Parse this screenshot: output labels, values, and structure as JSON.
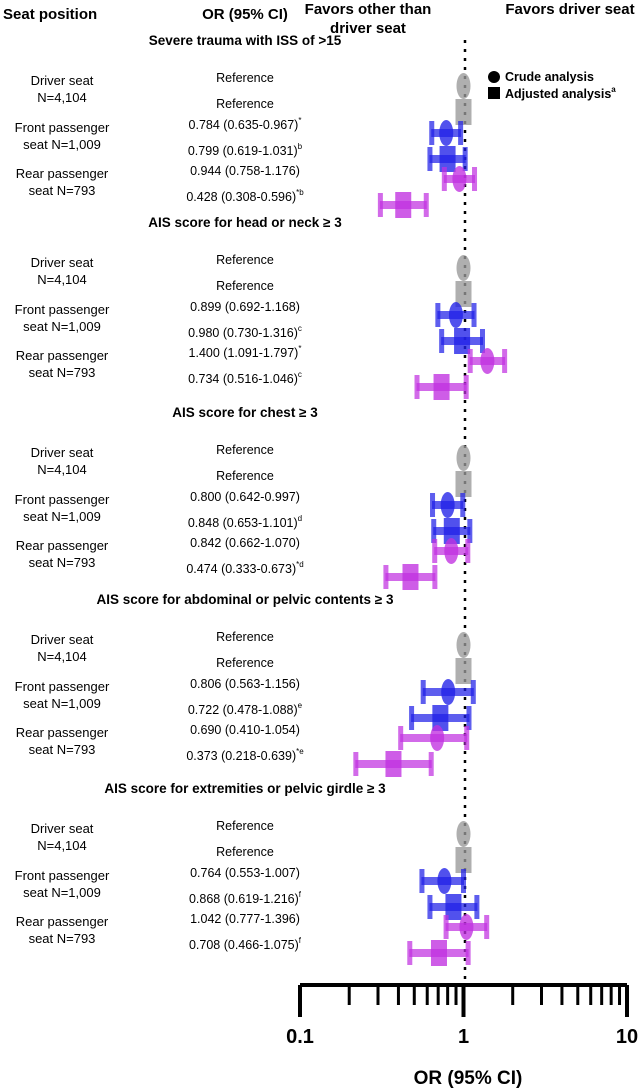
{
  "headers": {
    "seat_position": "Seat position",
    "or_ci": "OR (95% CI)",
    "favors_other_line1": "Favors other than",
    "favors_other_line2": "driver seat",
    "favors_driver": "Favors driver seat"
  },
  "legend": {
    "crude": "Crude analysis",
    "adjusted": "Adjusted analysis",
    "adjusted_sup": "a"
  },
  "colors": {
    "driver": "#999999",
    "front": "#2020e8",
    "rear": "#c030e0"
  },
  "chart_data": {
    "type": "forest",
    "x_scale": "log",
    "xlim": [
      0.1,
      10
    ],
    "x_ticks": [
      0.1,
      1,
      10
    ],
    "x_tick_labels": [
      "0.1",
      "1",
      "10"
    ],
    "xlabel": "OR (95% CI)",
    "reference_line": 1,
    "sections": [
      {
        "title": "Severe trauma with ISS of >15",
        "groups": [
          {
            "label1": "Driver seat",
            "label2": "N=4,104",
            "seat": "driver",
            "rows": [
              {
                "text": "Reference",
                "sup": "",
                "or": 1,
                "lo": 1,
                "hi": 1,
                "marker": "circle"
              },
              {
                "text": "Reference",
                "sup": "",
                "or": 1,
                "lo": 1,
                "hi": 1,
                "marker": "square"
              }
            ]
          },
          {
            "label1": "Front passenger",
            "label2": "seat N=1,009",
            "seat": "front",
            "rows": [
              {
                "text": "0.784 (0.635-0.967)",
                "sup": "*",
                "or": 0.784,
                "lo": 0.635,
                "hi": 0.967,
                "marker": "circle"
              },
              {
                "text": "0.799 (0.619-1.031)",
                "sup": "b",
                "or": 0.799,
                "lo": 0.619,
                "hi": 1.031,
                "marker": "square"
              }
            ]
          },
          {
            "label1": "Rear passenger",
            "label2": "seat N=793",
            "seat": "rear",
            "rows": [
              {
                "text": "0.944 (0.758-1.176)",
                "sup": "",
                "or": 0.944,
                "lo": 0.758,
                "hi": 1.176,
                "marker": "circle"
              },
              {
                "text": "0.428 (0.308-0.596)",
                "sup": "*b",
                "or": 0.428,
                "lo": 0.308,
                "hi": 0.596,
                "marker": "square"
              }
            ]
          }
        ]
      },
      {
        "title": "AIS score for head or neck ≥ 3",
        "groups": [
          {
            "label1": "Driver seat",
            "label2": "N=4,104",
            "seat": "driver",
            "rows": [
              {
                "text": "Reference",
                "sup": "",
                "or": 1,
                "lo": 1,
                "hi": 1,
                "marker": "circle"
              },
              {
                "text": "Reference",
                "sup": "",
                "or": 1,
                "lo": 1,
                "hi": 1,
                "marker": "square"
              }
            ]
          },
          {
            "label1": "Front passenger",
            "label2": "seat N=1,009",
            "seat": "front",
            "rows": [
              {
                "text": "0.899 (0.692-1.168)",
                "sup": "",
                "or": 0.899,
                "lo": 0.692,
                "hi": 1.168,
                "marker": "circle"
              },
              {
                "text": "0.980 (0.730-1.316)",
                "sup": "c",
                "or": 0.98,
                "lo": 0.73,
                "hi": 1.316,
                "marker": "square"
              }
            ]
          },
          {
            "label1": "Rear passenger",
            "label2": "seat N=793",
            "seat": "rear",
            "rows": [
              {
                "text": "1.400 (1.091-1.797)",
                "sup": "*",
                "or": 1.4,
                "lo": 1.091,
                "hi": 1.797,
                "marker": "circle"
              },
              {
                "text": "0.734 (0.516-1.046)",
                "sup": "c",
                "or": 0.734,
                "lo": 0.516,
                "hi": 1.046,
                "marker": "square"
              }
            ]
          }
        ]
      },
      {
        "title": "AIS score for chest ≥ 3",
        "groups": [
          {
            "label1": "Driver seat",
            "label2": "N=4,104",
            "seat": "driver",
            "rows": [
              {
                "text": "Reference",
                "sup": "",
                "or": 1,
                "lo": 1,
                "hi": 1,
                "marker": "circle"
              },
              {
                "text": "Reference",
                "sup": "",
                "or": 1,
                "lo": 1,
                "hi": 1,
                "marker": "square"
              }
            ]
          },
          {
            "label1": "Front passenger",
            "label2": "seat N=1,009",
            "seat": "front",
            "rows": [
              {
                "text": "0.800 (0.642-0.997)",
                "sup": "",
                "or": 0.8,
                "lo": 0.642,
                "hi": 0.997,
                "marker": "circle"
              },
              {
                "text": "0.848 (0.653-1.101)",
                "sup": "d",
                "or": 0.848,
                "lo": 0.653,
                "hi": 1.101,
                "marker": "square"
              }
            ]
          },
          {
            "label1": "Rear passenger",
            "label2": "seat N=793",
            "seat": "rear",
            "rows": [
              {
                "text": "0.842 (0.662-1.070)",
                "sup": "",
                "or": 0.842,
                "lo": 0.662,
                "hi": 1.07,
                "marker": "circle"
              },
              {
                "text": "0.474 (0.333-0.673)",
                "sup": "*d",
                "or": 0.474,
                "lo": 0.333,
                "hi": 0.673,
                "marker": "square"
              }
            ]
          }
        ]
      },
      {
        "title": "AIS score for abdominal or pelvic contents ≥ 3",
        "groups": [
          {
            "label1": "Driver seat",
            "label2": "N=4,104",
            "seat": "driver",
            "rows": [
              {
                "text": "Reference",
                "sup": "",
                "or": 1,
                "lo": 1,
                "hi": 1,
                "marker": "circle"
              },
              {
                "text": "Reference",
                "sup": "",
                "or": 1,
                "lo": 1,
                "hi": 1,
                "marker": "square"
              }
            ]
          },
          {
            "label1": "Front passenger",
            "label2": "seat N=1,009",
            "seat": "front",
            "rows": [
              {
                "text": "0.806 (0.563-1.156)",
                "sup": "",
                "or": 0.806,
                "lo": 0.563,
                "hi": 1.156,
                "marker": "circle"
              },
              {
                "text": "0.722 (0.478-1.088)",
                "sup": "e",
                "or": 0.722,
                "lo": 0.478,
                "hi": 1.088,
                "marker": "square"
              }
            ]
          },
          {
            "label1": "Rear passenger",
            "label2": "seat N=793",
            "seat": "rear",
            "rows": [
              {
                "text": "0.690 (0.410-1.054)",
                "sup": "",
                "or": 0.69,
                "lo": 0.41,
                "hi": 1.054,
                "marker": "circle"
              },
              {
                "text": "0.373 (0.218-0.639)",
                "sup": "*e",
                "or": 0.373,
                "lo": 0.218,
                "hi": 0.639,
                "marker": "square"
              }
            ]
          }
        ]
      },
      {
        "title": "AIS score for extremities or pelvic girdle ≥ 3",
        "groups": [
          {
            "label1": "Driver seat",
            "label2": "N=4,104",
            "seat": "driver",
            "rows": [
              {
                "text": "Reference",
                "sup": "",
                "or": 1,
                "lo": 1,
                "hi": 1,
                "marker": "circle"
              },
              {
                "text": "Reference",
                "sup": "",
                "or": 1,
                "lo": 1,
                "hi": 1,
                "marker": "square"
              }
            ]
          },
          {
            "label1": "Front passenger",
            "label2": "seat N=1,009",
            "seat": "front",
            "rows": [
              {
                "text": "0.764 (0.553-1.007)",
                "sup": "",
                "or": 0.764,
                "lo": 0.553,
                "hi": 1.007,
                "marker": "circle"
              },
              {
                "text": "0.868 (0.619-1.216)",
                "sup": "f",
                "or": 0.868,
                "lo": 0.619,
                "hi": 1.216,
                "marker": "square"
              }
            ]
          },
          {
            "label1": "Rear passenger",
            "label2": "seat N=793",
            "seat": "rear",
            "rows": [
              {
                "text": "1.042 (0.777-1.396)",
                "sup": "",
                "or": 1.042,
                "lo": 0.777,
                "hi": 1.396,
                "marker": "circle"
              },
              {
                "text": "0.708 (0.466-1.075)",
                "sup": "f",
                "or": 0.708,
                "lo": 0.466,
                "hi": 1.075,
                "marker": "square"
              }
            ]
          }
        ]
      }
    ]
  }
}
